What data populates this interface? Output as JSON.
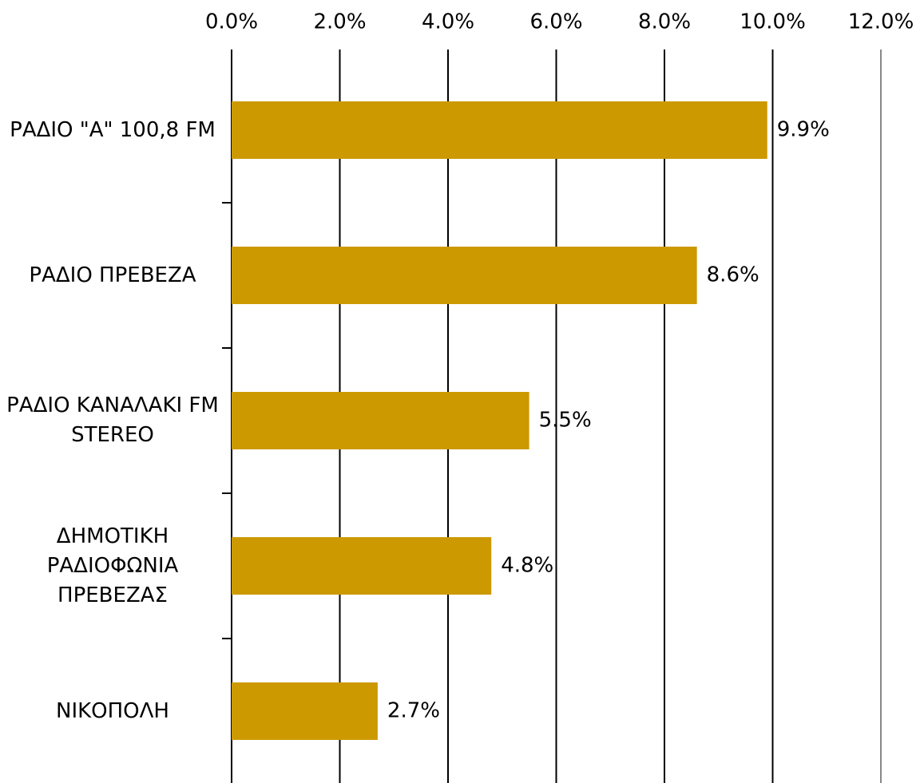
{
  "chart_data": {
    "type": "bar",
    "orientation": "horizontal",
    "categories": [
      "ΡΑΔΙΟ \"A\" 100,8 FM",
      "ΡΑΔΙΟ ΠΡΕΒΕΖΑ",
      "ΡΑΔΙΟ ΚΑΝΑΛΑΚΙ FM STEREO",
      "ΔΗΜΟΤΙΚΗ ΡΑΔΙΟΦΩΝΙΑ ΠΡΕΒΕΖΑΣ",
      "ΝΙΚΟΠΟΛΗ"
    ],
    "values": [
      9.9,
      8.6,
      5.5,
      4.8,
      2.7
    ],
    "value_labels": [
      "9.9%",
      "8.6%",
      "5.5%",
      "4.8%",
      "2.7%"
    ],
    "color": "#cc9900",
    "xlim": [
      0,
      12
    ],
    "xticks": [
      {
        "value": 0,
        "label": "0.0%"
      },
      {
        "value": 2,
        "label": "2.0%"
      },
      {
        "value": 4,
        "label": "4.0%"
      },
      {
        "value": 6,
        "label": "6.0%"
      },
      {
        "value": 8,
        "label": "8.0%"
      },
      {
        "value": 10,
        "label": "10.0%"
      },
      {
        "value": 12,
        "label": "12.0%"
      }
    ],
    "grid": true
  }
}
